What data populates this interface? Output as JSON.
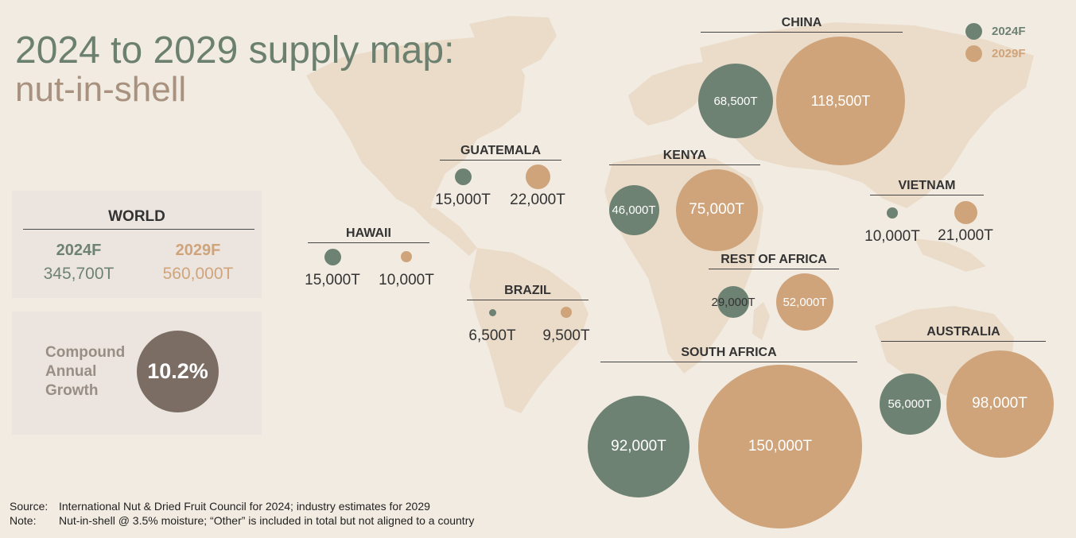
{
  "title": {
    "line1": "2024 to 2029 supply map:",
    "line2": "nut-in-shell"
  },
  "legend": [
    {
      "label": "2024F",
      "color": "#6e8273"
    },
    {
      "label": "2029F",
      "color": "#cfa47b"
    }
  ],
  "world": {
    "title": "WORLD",
    "y2024_label": "2024F",
    "y2024_value": "345,700T",
    "y2029_label": "2029F",
    "y2029_value": "560,000T"
  },
  "cagr": {
    "label_lines": [
      "Compound",
      "Annual",
      "Growth"
    ],
    "value": "10.2%"
  },
  "regions": [
    {
      "name": "CHINA",
      "v2024": "68,500T",
      "v2029": "118,500T",
      "tonnes2024": 68500,
      "tonnes2029": 118500
    },
    {
      "name": "KENYA",
      "v2024": "46,000T",
      "v2029": "75,000T",
      "tonnes2024": 46000,
      "tonnes2029": 75000
    },
    {
      "name": "GUATEMALA",
      "v2024": "15,000T",
      "v2029": "22,000T",
      "tonnes2024": 15000,
      "tonnes2029": 22000
    },
    {
      "name": "VIETNAM",
      "v2024": "10,000T",
      "v2029": "21,000T",
      "tonnes2024": 10000,
      "tonnes2029": 21000
    },
    {
      "name": "HAWAII",
      "v2024": "15,000T",
      "v2029": "10,000T",
      "tonnes2024": 15000,
      "tonnes2029": 10000
    },
    {
      "name": "BRAZIL",
      "v2024": "6,500T",
      "v2029": "9,500T",
      "tonnes2024": 6500,
      "tonnes2029": 9500
    },
    {
      "name": "REST OF AFRICA",
      "v2024": "29,000T",
      "v2029": "52,000T",
      "tonnes2024": 29000,
      "tonnes2029": 52000
    },
    {
      "name": "AUSTRALIA",
      "v2024": "56,000T",
      "v2029": "98,000T",
      "tonnes2024": 56000,
      "tonnes2029": 98000
    },
    {
      "name": "SOUTH AFRICA",
      "v2024": "92,000T",
      "v2029": "150,000T",
      "tonnes2024": 92000,
      "tonnes2029": 150000
    }
  ],
  "footnotes": {
    "source_key": "Source:",
    "source_text": "International Nut & Dried Fruit Council for 2024; industry estimates for 2029",
    "note_key": "Note:",
    "note_text": "Nut-in-shell @ 3.5% moisture; “Other” is included in total but not aligned to a country"
  }
}
